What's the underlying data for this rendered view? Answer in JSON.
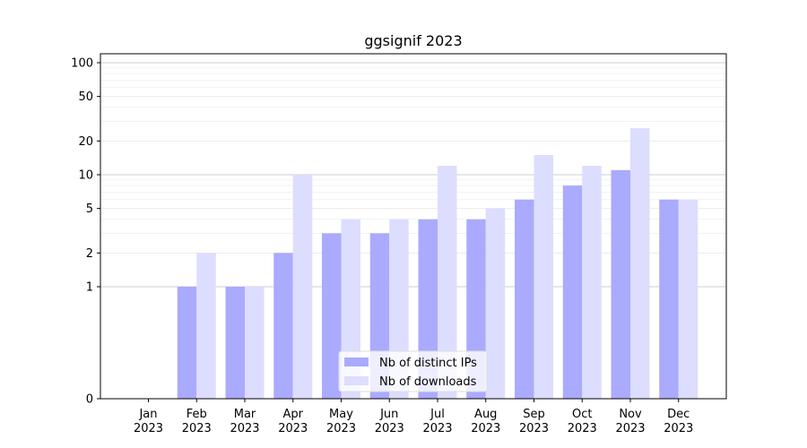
{
  "chart_data": {
    "type": "bar",
    "title": "ggsignif 2023",
    "xlabel": "",
    "ylabel": "",
    "y_scale": "symlog",
    "y_ticks": [
      0,
      1,
      2,
      5,
      10,
      20,
      50,
      100
    ],
    "categories": [
      [
        "Jan",
        "2023"
      ],
      [
        "Feb",
        "2023"
      ],
      [
        "Mar",
        "2023"
      ],
      [
        "Apr",
        "2023"
      ],
      [
        "May",
        "2023"
      ],
      [
        "Jun",
        "2023"
      ],
      [
        "Jul",
        "2023"
      ],
      [
        "Aug",
        "2023"
      ],
      [
        "Sep",
        "2023"
      ],
      [
        "Oct",
        "2023"
      ],
      [
        "Nov",
        "2023"
      ],
      [
        "Dec",
        "2023"
      ]
    ],
    "series": [
      {
        "name": "Nb of distinct IPs",
        "color": "#aaaaff",
        "values": [
          0,
          1,
          1,
          2,
          3,
          3,
          4,
          4,
          6,
          8,
          11,
          6
        ]
      },
      {
        "name": "Nb of downloads",
        "color": "#ddddff",
        "values": [
          0,
          2,
          1,
          10,
          4,
          4,
          12,
          5,
          15,
          12,
          26,
          6
        ]
      }
    ],
    "legend_position": "bottom-center",
    "grid": true
  }
}
